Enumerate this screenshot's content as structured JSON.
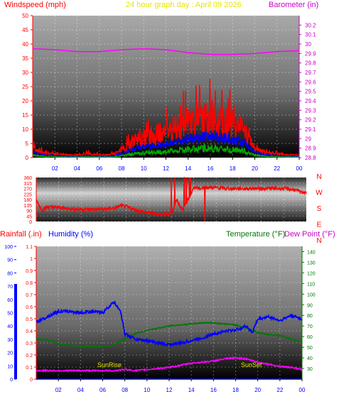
{
  "header": {
    "left_title": "Windspeed (mph)",
    "center_title": "24 hour graph day : April 09 2026",
    "right_title": "Barometer (in)"
  },
  "colors": {
    "wind_max": "#ff0000",
    "wind_avg": "#0000ff",
    "wind_min": "#00aa00",
    "barometer": "#ff00ff",
    "direction": "#ff0000",
    "humidity": "#0000ff",
    "temperature": "#007700",
    "dew_point": "#ff00ff",
    "rainfall": "#0000ff",
    "title_yellow": "#e6e600",
    "axis_red": "#ff0000",
    "axis_magenta": "#cc00cc",
    "axis_green": "#007700",
    "axis_blue": "#0000ff"
  },
  "bottom_header": {
    "rainfall_label": "Rainfall (.in)",
    "humidity_label": "Humidity (%)",
    "temperature_label": "Temperature (°F)",
    "dewpoint_label": "Dew Point (°F)"
  },
  "annotations": {
    "sunrise": "SunRise",
    "sunset": "SunSet"
  },
  "chart_data": [
    {
      "type": "line",
      "title": "24 hour graph day : April 09 2026",
      "x_ticks": [
        "02",
        "04",
        "06",
        "08",
        "10",
        "12",
        "14",
        "16",
        "18",
        "20",
        "22",
        "00"
      ],
      "xlim": [
        0,
        24
      ],
      "left_axis": {
        "label": "Windspeed (mph)",
        "ylim": [
          0,
          50
        ],
        "ticks": [
          0,
          5,
          10,
          15,
          20,
          25,
          30,
          35,
          40,
          45,
          50
        ]
      },
      "right_axis": {
        "label": "Barometer (in)",
        "ylim": [
          28.8,
          30.3
        ],
        "ticks": [
          "28.8",
          "28.9",
          "29",
          "29.1",
          "29.2",
          "29.3",
          "29.4",
          "29.5",
          "29.6",
          "29.7",
          "29.8",
          "29.9",
          "30",
          "30.1",
          "30.2"
        ]
      },
      "series": [
        {
          "name": "Windspeed (mph)",
          "hours": [
            0,
            1,
            2,
            3,
            4,
            5,
            6,
            7,
            8,
            9,
            10,
            11,
            12,
            13,
            14,
            15,
            16,
            17,
            18,
            19,
            20,
            21,
            22,
            23,
            24
          ],
          "values": [
            4,
            2,
            1.5,
            1,
            1,
            1.5,
            1,
            1,
            3,
            6,
            8,
            9,
            10,
            12,
            14,
            15,
            16,
            15,
            13,
            11,
            4,
            2,
            1.5,
            1,
            1
          ]
        },
        {
          "name": "Barometer (in)",
          "hours": [
            0,
            2,
            4,
            6,
            8,
            10,
            12,
            14,
            16,
            18,
            20,
            22,
            24
          ],
          "values": [
            29.95,
            29.94,
            29.92,
            29.92,
            29.94,
            29.95,
            29.94,
            29.91,
            29.89,
            29.89,
            29.9,
            29.92,
            29.93
          ]
        }
      ]
    },
    {
      "type": "line",
      "title": "",
      "x_ticks": [
        "02",
        "04",
        "06",
        "08",
        "10",
        "12",
        "14",
        "16",
        "18",
        "20",
        "22",
        "00"
      ],
      "xlim": [
        0,
        24
      ],
      "left_axis": {
        "label": "",
        "ylim": [
          0,
          360
        ],
        "ticks": [
          0,
          45,
          90,
          135,
          180,
          225,
          270,
          315,
          360
        ]
      },
      "right_labels": [
        "N",
        "W",
        "S",
        "E",
        "N"
      ],
      "series": [
        {
          "name": "Wind direction (deg)",
          "hours": [
            0,
            0.5,
            1,
            2,
            3,
            4,
            5,
            6,
            7,
            7.5,
            8,
            9,
            10,
            11,
            12,
            12.5,
            13,
            14,
            15,
            16,
            17,
            18,
            19,
            20,
            21,
            22,
            23,
            23.5,
            24
          ],
          "values": [
            180,
            90,
            120,
            115,
            105,
            100,
            100,
            100,
            110,
            130,
            120,
            90,
            70,
            60,
            60,
            180,
            90,
            270,
            280,
            275,
            270,
            270,
            270,
            270,
            270,
            270,
            260,
            240,
            240
          ]
        }
      ]
    },
    {
      "type": "line",
      "title": "",
      "x_ticks": [
        "02",
        "04",
        "06",
        "08",
        "10",
        "12",
        "14",
        "16",
        "18",
        "20",
        "22",
        "00"
      ],
      "xlim": [
        0,
        24
      ],
      "left_axis": {
        "label": "Rainfall (.in)",
        "ylim": [
          0,
          1.1
        ],
        "ticks": [
          "0",
          "0.1",
          "0.2",
          "0.3",
          "0.4",
          "0.5",
          "0.6",
          "0.7",
          "0.8",
          "0.9",
          "1",
          "1.1"
        ]
      },
      "left_axis_2": {
        "label": "Humidity (%)",
        "ylim": [
          0,
          100
        ],
        "ticks": [
          0,
          10,
          20,
          30,
          40,
          50,
          60,
          70,
          80,
          90,
          100
        ]
      },
      "right_axis": {
        "label": "Temperature (°F)",
        "ylim": [
          20,
          145
        ],
        "ticks": [
          30,
          40,
          50,
          60,
          70,
          80,
          90,
          100,
          110,
          120,
          130,
          140
        ]
      },
      "series": [
        {
          "name": "Humidity (%)",
          "hours": [
            0,
            1,
            2,
            3,
            4,
            5,
            6,
            7,
            7.6,
            8,
            9,
            10,
            11,
            12,
            13,
            14,
            15,
            16,
            17,
            18,
            19,
            19.5,
            20,
            21,
            22,
            23,
            24
          ],
          "values": [
            43,
            47,
            51,
            51,
            50,
            51,
            50,
            58,
            52,
            34,
            30,
            29,
            27,
            26,
            27,
            29,
            31,
            34,
            36,
            37,
            40,
            35,
            45,
            47,
            44,
            48,
            45
          ]
        },
        {
          "name": "Temperature (°F)",
          "hours": [
            0,
            1,
            2,
            3,
            4,
            5,
            6,
            7,
            8,
            9,
            10,
            11,
            12,
            13,
            14,
            15,
            16,
            17,
            18,
            19,
            20,
            21,
            22,
            23,
            24
          ],
          "values": [
            58,
            57,
            53,
            52,
            51,
            51,
            51,
            52,
            58,
            63,
            66,
            68,
            70,
            71,
            72,
            73,
            73,
            72,
            71,
            68,
            64,
            62,
            61,
            58,
            55
          ]
        },
        {
          "name": "Dew Point (°F)",
          "hours": [
            0,
            1,
            2,
            3,
            4,
            5,
            6,
            7,
            8,
            9,
            10,
            11,
            12,
            13,
            14,
            15,
            16,
            17,
            18,
            19,
            20,
            21,
            22,
            23,
            24
          ],
          "values": [
            28,
            28,
            28,
            28,
            28,
            28,
            28,
            28,
            29,
            28,
            29,
            30,
            31,
            33,
            35,
            36,
            37,
            39,
            40,
            39,
            36,
            34,
            32,
            31,
            29
          ]
        },
        {
          "name": "Rainfall (.in)",
          "hours": [
            0,
            24
          ],
          "values": [
            0,
            0
          ]
        }
      ]
    }
  ]
}
